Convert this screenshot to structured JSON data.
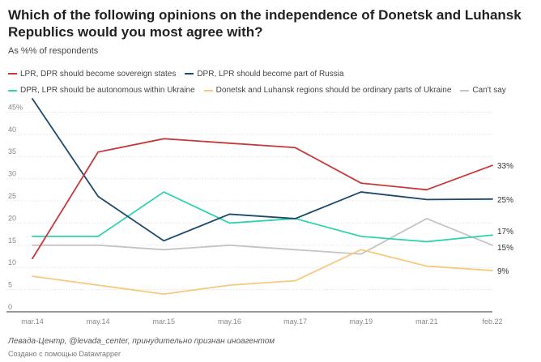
{
  "header": {
    "title": "Which of the following opinions on the independence of Donetsk and Luhansk Republics would you most agree with?",
    "subtitle": "As %% of respondents"
  },
  "chart_data": {
    "type": "line",
    "title": "Which of the following opinions on the independence of Donetsk and Luhansk Republics would you most agree with?",
    "subtitle": "As %% of respondents",
    "ylim": [
      0,
      48
    ],
    "yticks": [
      {
        "v": 0,
        "label": "0"
      },
      {
        "v": 5,
        "label": "5"
      },
      {
        "v": 10,
        "label": "10"
      },
      {
        "v": 15,
        "label": "15"
      },
      {
        "v": 20,
        "label": "20"
      },
      {
        "v": 25,
        "label": "25"
      },
      {
        "v": 30,
        "label": "30"
      },
      {
        "v": 35,
        "label": "35"
      },
      {
        "v": 40,
        "label": "40"
      },
      {
        "v": 45,
        "label": "45%"
      }
    ],
    "grid": true,
    "legend_position": "top",
    "x": [
      "mar.14",
      "may.14",
      "mar.15",
      "may.16",
      "may.17",
      "may.19",
      "mar.21",
      "feb.22"
    ],
    "series": [
      {
        "name": "LPR, DPR should become sovereign states",
        "color": "#c53a3a",
        "values": [
          12,
          36,
          39,
          38,
          37,
          29,
          27.5,
          33
        ],
        "end_label": "33%"
      },
      {
        "name": "DPR, LPR should become part of Russia",
        "color": "#1e4a6b",
        "values": [
          48,
          26,
          16,
          22,
          21,
          27,
          25.3,
          25.4
        ],
        "end_label": "25%"
      },
      {
        "name": "DPR, LPR should be autonomous within Ukraine",
        "color": "#2fd3b0",
        "values": [
          17,
          17,
          27,
          20,
          21,
          17,
          15.8,
          17.3
        ],
        "end_label": "17%"
      },
      {
        "name": "Donetsk and Luhansk regions should be ordinary parts of Ukraine",
        "color": "#f7c97f",
        "values": [
          8,
          6,
          4,
          6,
          7,
          14,
          10.3,
          9.3
        ],
        "end_label": "9%"
      },
      {
        "name": "Can't say",
        "color": "#c4c4c4",
        "values": [
          15,
          15,
          14,
          15,
          14,
          13,
          21,
          15
        ],
        "end_label": "15%"
      }
    ]
  },
  "footer": {
    "source": "Левада-Центр, @levada_center, принудительно признан иноагентом",
    "credit": "Создано с помощью Datawrapper"
  }
}
